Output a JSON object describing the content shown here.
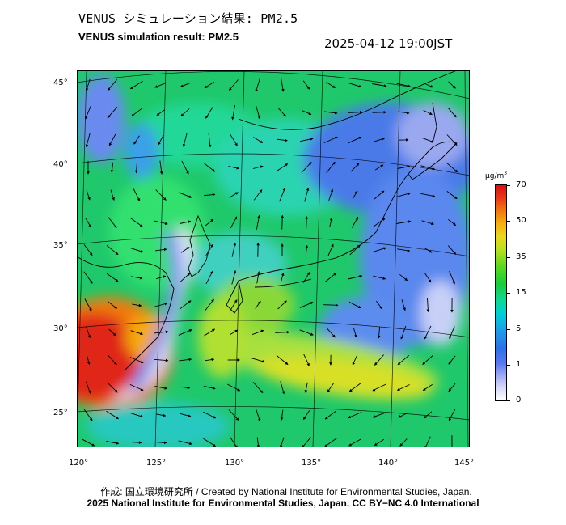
{
  "header": {
    "title_ja": "VENUS シミュレーション結果: PM2.5",
    "title_en": "VENUS simulation result: PM2.5",
    "datetime": "2025-04-12 19:00JST"
  },
  "map": {
    "region": "East Asia / Japan",
    "lat_labels": [
      "45°",
      "40°",
      "35°",
      "30°",
      "25°"
    ],
    "lon_labels": [
      "120°",
      "125°",
      "130°",
      "135°",
      "140°",
      "145°"
    ],
    "layers": [
      "PM2.5 concentration field",
      "wind vectors",
      "coastlines",
      "lat-lon graticule"
    ]
  },
  "colorbar": {
    "unit": "μg/m",
    "unit_sup": "3",
    "ticks": [
      "70",
      "50",
      "35",
      "15",
      "5",
      "1",
      "0"
    ],
    "colors": {
      "low": "#ffffff",
      "blue": "#2f6fe8",
      "cyan": "#00cfd8",
      "green": "#18cc3a",
      "yellow": "#e8d820",
      "orange": "#f07a10",
      "red": "#d81010"
    }
  },
  "footer": {
    "credit": "作成: 国立環境研究所 / Created by National Institute for Environmental Studies, Japan.",
    "license": "2025 National Institute for Environmental Studies, Japan. CC BY−NC 4.0 International"
  }
}
